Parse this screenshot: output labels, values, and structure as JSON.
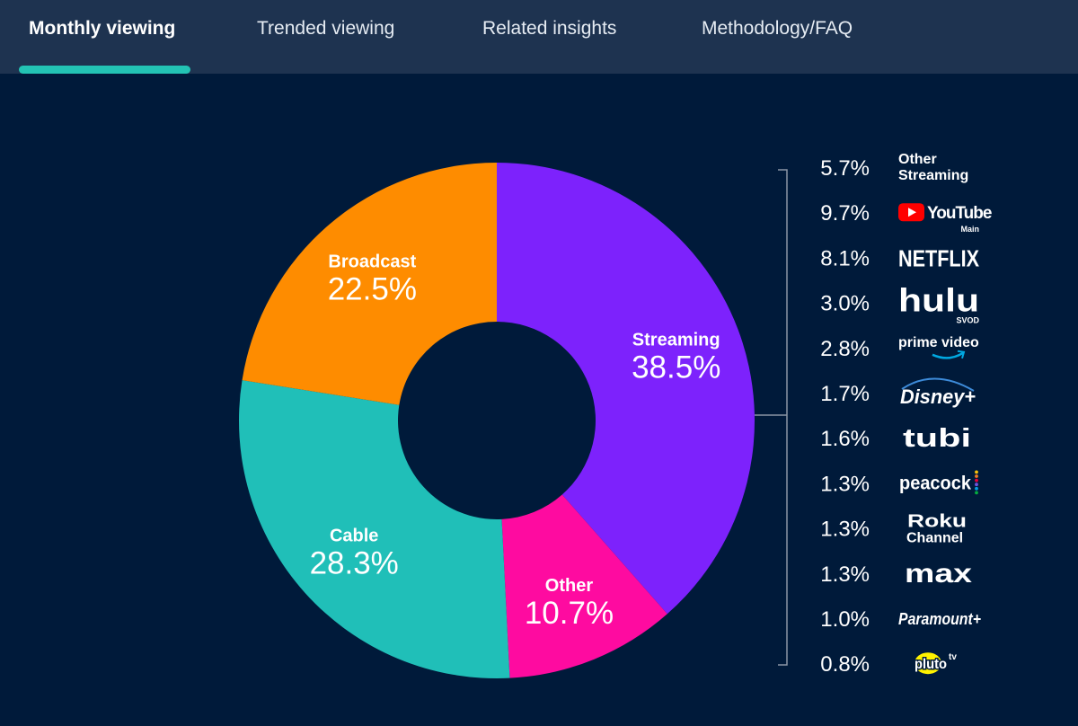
{
  "tabs": [
    {
      "label": "Monthly viewing",
      "active": true
    },
    {
      "label": "Trended viewing",
      "active": false
    },
    {
      "label": "Related insights",
      "active": false
    },
    {
      "label": "Methodology/FAQ",
      "active": false
    }
  ],
  "colors": {
    "background": "#001a3a",
    "tabbar": "#1e3350",
    "accent": "#23c3b4",
    "streaming": "#7d22fc",
    "other": "#fe0ba0",
    "cable": "#20bfb8",
    "broadcast": "#fe8c00"
  },
  "chart_data": [
    {
      "type": "pie",
      "variant": "donut",
      "series": [
        {
          "name": "Streaming",
          "value": 38.5,
          "label": "38.5%",
          "color": "#7d22fc"
        },
        {
          "name": "Other",
          "value": 10.7,
          "label": "10.7%",
          "color": "#fe0ba0"
        },
        {
          "name": "Cable",
          "value": 28.3,
          "label": "28.3%",
          "color": "#20bfb8"
        },
        {
          "name": "Broadcast",
          "value": 22.5,
          "label": "22.5%",
          "color": "#fe8c00"
        }
      ]
    },
    {
      "type": "table",
      "breakdown_of": "Streaming",
      "rows": [
        {
          "label": "5.7%",
          "value": 5.7,
          "logo": "other-streaming",
          "text": [
            "Other",
            "Streaming"
          ]
        },
        {
          "label": "9.7%",
          "value": 9.7,
          "logo": "youtube",
          "text": [
            "YouTube",
            "Main"
          ]
        },
        {
          "label": "8.1%",
          "value": 8.1,
          "logo": "netflix",
          "text": [
            "NETFLIX"
          ]
        },
        {
          "label": "3.0%",
          "value": 3.0,
          "logo": "hulu",
          "text": [
            "hulu",
            "SVOD"
          ]
        },
        {
          "label": "2.8%",
          "value": 2.8,
          "logo": "prime-video",
          "text": [
            "prime video"
          ]
        },
        {
          "label": "1.7%",
          "value": 1.7,
          "logo": "disney-plus",
          "text": [
            "Disney+"
          ]
        },
        {
          "label": "1.6%",
          "value": 1.6,
          "logo": "tubi",
          "text": [
            "tubi"
          ]
        },
        {
          "label": "1.3%",
          "value": 1.3,
          "logo": "peacock",
          "text": [
            "peacock"
          ]
        },
        {
          "label": "1.3%",
          "value": 1.3,
          "logo": "roku-channel",
          "text": [
            "Roku",
            "Channel"
          ]
        },
        {
          "label": "1.3%",
          "value": 1.3,
          "logo": "max",
          "text": [
            "max"
          ]
        },
        {
          "label": "1.0%",
          "value": 1.0,
          "logo": "paramount-plus",
          "text": [
            "Paramount+"
          ]
        },
        {
          "label": "0.8%",
          "value": 0.8,
          "logo": "pluto-tv",
          "text": [
            "pluto",
            "tv"
          ]
        }
      ]
    }
  ]
}
